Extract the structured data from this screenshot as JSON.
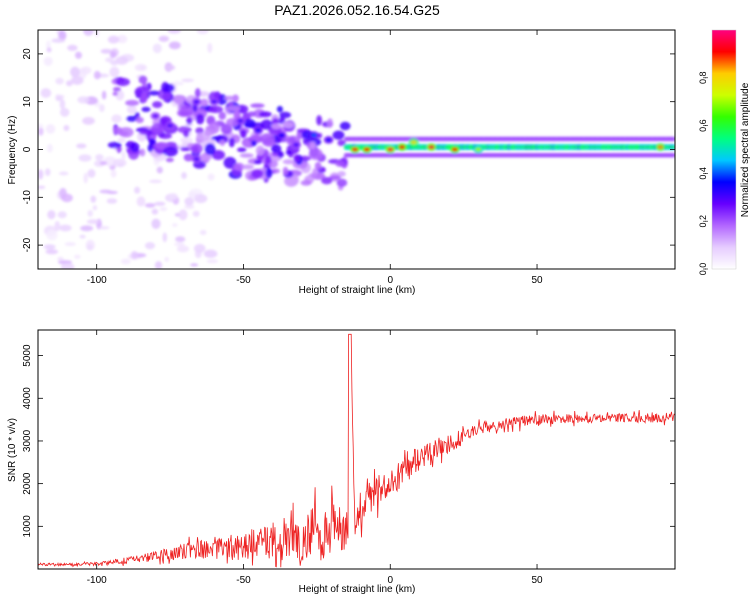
{
  "figure_title": "PAZ1.2026.052.16.54.G25",
  "chart_data": [
    {
      "type": "heatmap",
      "title": "PAZ1.2026.052.16.54.G25",
      "xlabel": "Height of straight line (km)",
      "ylabel": "Frequency (Hz)",
      "xlim": [
        -120,
        97
      ],
      "ylim": [
        -25,
        25
      ],
      "xticks": [
        -100,
        -50,
        0,
        50
      ],
      "yticks": [
        -20,
        -10,
        0,
        10,
        20
      ],
      "xtick_labels": [
        "-100",
        "-50",
        "0",
        "50"
      ],
      "ytick_labels": [
        "-20",
        "-10",
        "0",
        "10",
        "20"
      ],
      "colorbar": {
        "label": "Normalized spectral amplitude",
        "range": [
          0,
          1
        ],
        "ticks": [
          0.0,
          0.2,
          0.4,
          0.6,
          0.8
        ],
        "tick_labels": [
          "0.0",
          "0.2",
          "0.4",
          "0.6",
          "0.8"
        ],
        "colormap": [
          "#ffffff",
          "#e6ccff",
          "#b266ff",
          "#6600ff",
          "#0000ff",
          "#00c8ff",
          "#00ff80",
          "#33ff00",
          "#ccff00",
          "#ffcc00",
          "#ff0000",
          "#ff0080"
        ]
      },
      "features": [
        {
          "description": "scattered low-amplitude patches",
          "x_range": [
            -120,
            -60
          ],
          "freq_range": [
            -25,
            25
          ],
          "amplitude": 0.1
        },
        {
          "description": "tilted band of medium amplitude blobs",
          "x_range": [
            -95,
            -15
          ],
          "freq_center_start": 8,
          "freq_center_end": -2,
          "amplitude": 0.25
        },
        {
          "description": "narrow high-amplitude band near 0 Hz",
          "x_range": [
            -15,
            97
          ],
          "freq_center": 0.5,
          "freq_halfwidth": 1.2,
          "amplitude": 0.45
        }
      ],
      "hotspots": [
        {
          "x": -66,
          "freq": 10,
          "amp": 0.3
        },
        {
          "x": -80,
          "freq": 7,
          "amp": 0.28
        },
        {
          "x": -75,
          "freq": 5,
          "amp": 0.3
        },
        {
          "x": -60,
          "freq": 10,
          "amp": 0.3
        },
        {
          "x": -51,
          "freq": 6,
          "amp": 0.3
        },
        {
          "x": -45,
          "freq": 4,
          "amp": 0.34
        },
        {
          "x": -37,
          "freq": 3,
          "amp": 0.35
        },
        {
          "x": -32,
          "freq": 1,
          "amp": 0.3
        },
        {
          "x": -26,
          "freq": 3,
          "amp": 0.4
        },
        {
          "x": -21,
          "freq": 2,
          "amp": 0.34
        },
        {
          "x": -66,
          "freq": -2,
          "amp": 0.3
        },
        {
          "x": -12,
          "freq": 0,
          "amp": 0.93
        },
        {
          "x": -8,
          "freq": 0,
          "amp": 0.9
        },
        {
          "x": 0,
          "freq": 0,
          "amp": 0.95
        },
        {
          "x": 4,
          "freq": 0.5,
          "amp": 0.9
        },
        {
          "x": 8,
          "freq": 1.5,
          "amp": 0.8
        },
        {
          "x": 14,
          "freq": 0.5,
          "amp": 0.95
        },
        {
          "x": 22,
          "freq": 0,
          "amp": 0.9
        },
        {
          "x": 30,
          "freq": 0,
          "amp": 0.7
        },
        {
          "x": 92,
          "freq": 0.5,
          "amp": 0.85
        }
      ]
    },
    {
      "type": "line",
      "xlabel": "Height of straight line (km)",
      "ylabel": "SNR (10 * v/v)",
      "xlim": [
        -120,
        97
      ],
      "ylim": [
        0,
        5600
      ],
      "xticks": [
        -100,
        -50,
        0,
        50
      ],
      "yticks": [
        1000,
        2000,
        3000,
        4000,
        5000
      ],
      "xtick_labels": [
        "-100",
        "-50",
        "0",
        "50"
      ],
      "ytick_labels": [
        "1000",
        "2000",
        "3000",
        "4000",
        "5000"
      ],
      "color": "#ee2222",
      "series": [
        {
          "name": "SNR",
          "x": [
            -120,
            -110,
            -100,
            -90,
            -80,
            -70,
            -60,
            -50,
            -40,
            -35,
            -30,
            -25,
            -20,
            -16,
            -14,
            -13.5,
            -12,
            -10,
            -5,
            0,
            5,
            10,
            15,
            20,
            25,
            30,
            40,
            50,
            60,
            70,
            80,
            90,
            97
          ],
          "y": [
            120,
            100,
            120,
            200,
            300,
            420,
            500,
            560,
            620,
            700,
            780,
            820,
            880,
            900,
            950,
            5500,
            1000,
            1400,
            1800,
            2000,
            2300,
            2600,
            2800,
            2950,
            3100,
            3300,
            3420,
            3500,
            3520,
            3530,
            3540,
            3540,
            3550
          ],
          "noise_amplitude": [
            30,
            30,
            40,
            70,
            120,
            180,
            250,
            300,
            420,
            550,
            600,
            620,
            600,
            550,
            500,
            0,
            400,
            400,
            380,
            350,
            300,
            300,
            250,
            220,
            200,
            150,
            130,
            120,
            110,
            110,
            110,
            110,
            110
          ]
        }
      ]
    }
  ]
}
